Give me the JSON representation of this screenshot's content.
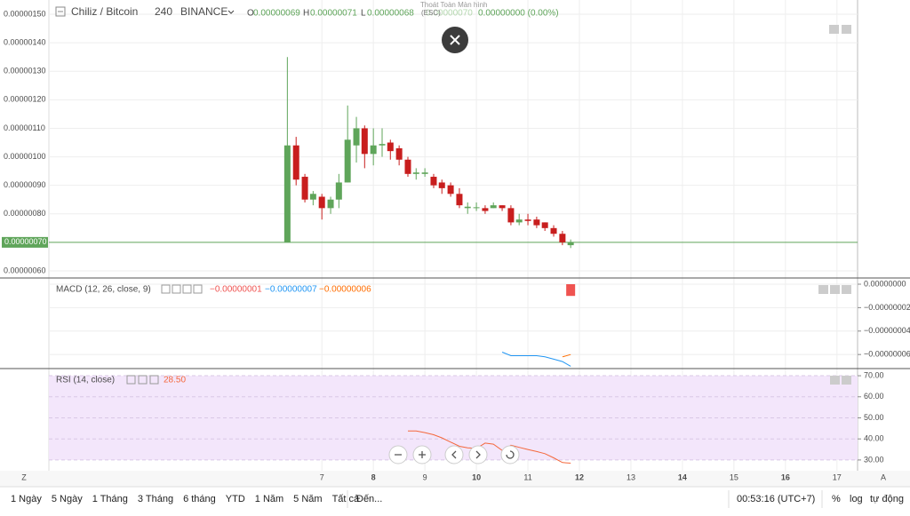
{
  "header": {
    "symbol": "Chiliz / Bitcoin",
    "interval": "240",
    "exchange": "BINANCE",
    "o_label": "O",
    "o_value": "0.00000069",
    "h_label": "H",
    "h_value": "0.00000071",
    "l_label": "L",
    "l_value": "0.00000068",
    "c_value": "0.00000070",
    "change": "0.00000000 (0.00%)",
    "exit_fullscreen": "Thoát Toàn Màn hình",
    "exit_key": "(ESC)"
  },
  "macd_legend": {
    "title": "MACD (12, 26, close, 9)",
    "histogram_value": "−0.00000001",
    "macd_value": "−0.00000007",
    "signal_value": "−0.00000006"
  },
  "rsi_legend": {
    "title": "RSI (14, close)",
    "value": "28.50"
  },
  "chart_data": [
    {
      "type": "candlestick",
      "up_color": "#5fa55a",
      "down_color": "#c81e1e",
      "xlim": [
        1.7,
        17.4
      ],
      "xticks": [
        7,
        8,
        9,
        10,
        11,
        12,
        13,
        14,
        15,
        16,
        17
      ],
      "ylim": [
        5.75e-07,
        1.55e-06
      ],
      "yticks": [
        {
          "value": 1.5e-06,
          "label": "0.00000150"
        },
        {
          "value": 1.4e-06,
          "label": "0.00000140"
        },
        {
          "value": 1.3e-06,
          "label": "0.00000130"
        },
        {
          "value": 1.2e-06,
          "label": "0.00000120"
        },
        {
          "value": 1.1e-06,
          "label": "0.00000110"
        },
        {
          "value": 1e-06,
          "label": "0.00000100"
        },
        {
          "value": 9e-07,
          "label": "0.00000090"
        },
        {
          "value": 8e-07,
          "label": "0.00000080"
        },
        {
          "value": 6e-07,
          "label": "0.00000060"
        }
      ],
      "last_price": {
        "value": 7e-07,
        "label": "0.00000070",
        "color": "#5fa55a"
      },
      "x": [
        6.33,
        6.5,
        6.67,
        6.83,
        7,
        7.17,
        7.33,
        7.5,
        7.67,
        7.83,
        8,
        8.17,
        8.33,
        8.5,
        8.67,
        8.83,
        9,
        9.17,
        9.33,
        9.5,
        9.67,
        9.83,
        10,
        10.17,
        10.33,
        10.5,
        10.67,
        10.83,
        11,
        11.17,
        11.33,
        11.5,
        11.67,
        11.83
      ],
      "open": [
        7e-07,
        1.04e-06,
        9.3e-07,
        8.5e-07,
        8.6e-07,
        8.2e-07,
        8.5e-07,
        9.1e-07,
        1.04e-06,
        1.1e-06,
        1.01e-06,
        1.04e-06,
        1.05e-06,
        1.03e-06,
        9.9e-07,
        9.4e-07,
        9.4e-07,
        9.3e-07,
        9.1e-07,
        9e-07,
        8.7e-07,
        8.2e-07,
        8.2e-07,
        8.2e-07,
        8.2e-07,
        8.3e-07,
        8.2e-07,
        7.7e-07,
        7.8e-07,
        7.8e-07,
        7.7e-07,
        7.5e-07,
        7.3e-07,
        6.9e-07
      ],
      "high": [
        1.35e-06,
        1.07e-06,
        9.4e-07,
        8.8e-07,
        8.7e-07,
        8.6e-07,
        9.4e-07,
        1.18e-06,
        1.14e-06,
        1.11e-06,
        1.1e-06,
        1.1e-06,
        1.06e-06,
        1.04e-06,
        1e-06,
        9.6e-07,
        9.6e-07,
        9.4e-07,
        9.2e-07,
        9.1e-07,
        8.9e-07,
        8.4e-07,
        8.4e-07,
        8.3e-07,
        8.4e-07,
        8.3e-07,
        8.3e-07,
        8e-07,
        8e-07,
        7.9e-07,
        7.7e-07,
        7.6e-07,
        7.4e-07,
        7.1e-07
      ],
      "low": [
        7e-07,
        9e-07,
        8.4e-07,
        8.3e-07,
        7.8e-07,
        8e-07,
        8.2e-07,
        9.1e-07,
        9.8e-07,
        9.6e-07,
        9.7e-07,
        1e-06,
        9.9e-07,
        9.7e-07,
        9.3e-07,
        9.2e-07,
        9.3e-07,
        8.9e-07,
        8.7e-07,
        8.6e-07,
        8.2e-07,
        8e-07,
        8.1e-07,
        8e-07,
        8.2e-07,
        8.1e-07,
        7.6e-07,
        7.6e-07,
        7.6e-07,
        7.5e-07,
        7.4e-07,
        7.2e-07,
        6.9e-07,
        6.8e-07
      ],
      "close": [
        1.04e-06,
        9.2e-07,
        8.5e-07,
        8.7e-07,
        8.2e-07,
        8.5e-07,
        9.1e-07,
        1.06e-06,
        1.1e-06,
        1.01e-06,
        1.04e-06,
        1.045e-06,
        1.02e-06,
        9.9e-07,
        9.4e-07,
        9.45e-07,
        9.45e-07,
        9e-07,
        8.9e-07,
        8.7e-07,
        8.3e-07,
        8.25e-07,
        8.23e-07,
        8.1e-07,
        8.3e-07,
        8.2e-07,
        7.7e-07,
        7.8e-07,
        7.75e-07,
        7.6e-07,
        7.5e-07,
        7.3e-07,
        7e-07,
        7e-07
      ]
    },
    {
      "type": "line",
      "ylim": [
        -7.2e-08,
        5.3e-09
      ],
      "yticks": [
        {
          "value": 0,
          "label": "0.00000000"
        },
        {
          "value": -2e-08,
          "label": "−0.00000002"
        },
        {
          "value": -4e-08,
          "label": "−0.00000004"
        },
        {
          "value": -6e-08,
          "label": "−0.00000006"
        }
      ],
      "histogram": {
        "x": [
          11.83
        ],
        "values": [
          -1e-08
        ],
        "color": "#ef5350"
      },
      "series": [
        {
          "color": "#2196f3",
          "x": [
            10.5,
            10.67,
            10.83,
            11,
            11.17,
            11.33,
            11.5,
            11.67,
            11.83
          ],
          "values": [
            -5.8e-08,
            -6.1e-08,
            -6.1e-08,
            -6.1e-08,
            -6.1e-08,
            -6.2e-08,
            -6.4e-08,
            -6.6e-08,
            -7e-08
          ]
        },
        {
          "color": "#ff6d00",
          "x": [
            11.67,
            11.83
          ],
          "values": [
            -6.2e-08,
            -6e-08
          ]
        }
      ]
    },
    {
      "type": "line",
      "ylim": [
        24.9,
        73.4
      ],
      "yticks": [
        {
          "value": 70,
          "label": "70.00"
        },
        {
          "value": 60,
          "label": "60.00"
        },
        {
          "value": 50,
          "label": "50.00"
        },
        {
          "value": 40,
          "label": "40.00"
        },
        {
          "value": 30,
          "label": "30.00"
        }
      ],
      "band": {
        "from": 30,
        "to": 70,
        "color": "#f3e6fb"
      },
      "series": [
        {
          "color": "#f4683c",
          "x": [
            8.67,
            8.83,
            9,
            9.17,
            9.33,
            9.5,
            9.67,
            9.83,
            10,
            10.17,
            10.33,
            10.5,
            10.67,
            10.83,
            11,
            11.17,
            11.33,
            11.5,
            11.67,
            11.83
          ],
          "values": [
            43.8,
            43.8,
            43,
            42,
            40.5,
            38.5,
            36.5,
            35.8,
            35.5,
            38,
            37.5,
            34.5,
            37,
            36,
            35,
            34,
            33,
            31,
            28.8,
            28.5
          ]
        }
      ]
    }
  ],
  "toolbar": {
    "ranges": [
      "1 Ngày",
      "5 Ngày",
      "1 Tháng",
      "3 Tháng",
      "6 tháng",
      "YTD",
      "1 Năm",
      "5 Năm",
      "Tất cả"
    ],
    "goto": "Đến...",
    "clock": "00:53:16 (UTC+7)",
    "percent": "%",
    "log": "log",
    "auto": "tự động",
    "left_scale": "Z",
    "right_scale": "A"
  }
}
